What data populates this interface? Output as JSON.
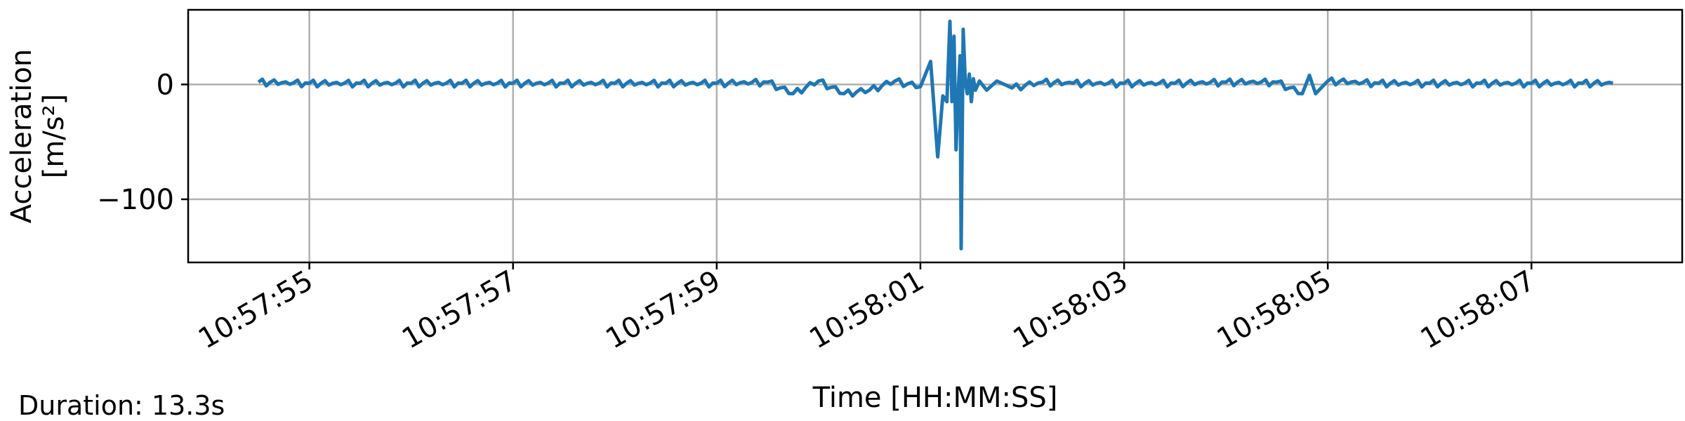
{
  "chart_data": {
    "type": "line",
    "title": "",
    "xlabel": "Time [HH:MM:SS]",
    "ylabel": [
      "Acceleration",
      "[m/s²]"
    ],
    "x_ticks": [
      "10:57:55",
      "10:57:57",
      "10:57:59",
      "10:58:01",
      "10:58:03",
      "10:58:05",
      "10:58:07"
    ],
    "y_ticks": [
      0,
      -100
    ],
    "y_tick_labels": [
      "0",
      "−100"
    ],
    "xlim": [
      "10:57:53.81",
      "10:58:08.48"
    ],
    "ylim": [
      -155,
      65
    ],
    "grid": true,
    "line_color": "#1f77b4",
    "grid_color": "#b0b0b0",
    "series": [
      {
        "x": [
          "10:57:54.50",
          "10:57:55.00",
          "10:57:55.50",
          "10:57:56.00",
          "10:57:56.50",
          "10:57:57.00",
          "10:57:57.50",
          "10:57:58.00",
          "10:57:58.50",
          "10:57:59.00",
          "10:57:59.50",
          "10:57:59.75",
          "10:58:00.00",
          "10:58:00.25",
          "10:58:00.50",
          "10:58:00.75",
          "10:58:01.00",
          "10:58:01.10",
          "10:58:01.17",
          "10:58:01.22",
          "10:58:01.26",
          "10:58:01.29",
          "10:58:01.31",
          "10:58:01.33",
          "10:58:01.35",
          "10:58:01.37",
          "10:58:01.39",
          "10:58:01.40",
          "10:58:01.42",
          "10:58:01.44",
          "10:58:01.46",
          "10:58:01.48",
          "10:58:01.50",
          "10:58:01.52",
          "10:58:01.54",
          "10:58:01.58",
          "10:58:01.65",
          "10:58:01.75",
          "10:58:01.90",
          "10:58:02.20",
          "10:58:02.50",
          "10:58:03.00",
          "10:58:03.50",
          "10:58:04.00",
          "10:58:04.50",
          "10:58:04.75",
          "10:58:04.82",
          "10:58:04.88",
          "10:58:05.00",
          "10:58:05.50",
          "10:58:06.00",
          "10:58:06.50",
          "10:58:07.00",
          "10:58:07.50",
          "10:58:07.80"
        ],
        "values": [
          2,
          1,
          1,
          1,
          1,
          1,
          1,
          1,
          1,
          1,
          2,
          -8,
          3,
          -8,
          -5,
          3,
          -2,
          20,
          -63,
          -10,
          -15,
          55,
          -15,
          42,
          -57,
          -10,
          25,
          -143,
          48,
          3,
          -8,
          9,
          -15,
          5,
          -5,
          3,
          -5,
          3,
          -3,
          2,
          1,
          1,
          1,
          2,
          2,
          -8,
          8,
          -8,
          3,
          1,
          1,
          1,
          1,
          1,
          1
        ]
      }
    ]
  },
  "footnote": "Duration: 13.3s"
}
